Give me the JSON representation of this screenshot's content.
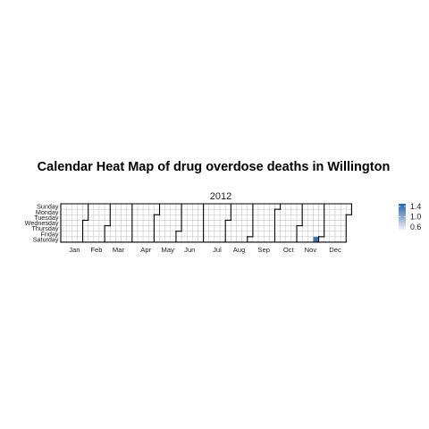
{
  "chart_data": {
    "type": "heatmap",
    "title": "Calendar Heat Map of drug overdose deaths in Willington",
    "facet_label": "2012",
    "year": 2012,
    "weekday_labels": [
      "Sunday",
      "Monday",
      "Tuesday",
      "Wednesday",
      "Thursday",
      "Friday",
      "Saturday"
    ],
    "month_labels": [
      "Jan",
      "Feb",
      "Mar",
      "Apr",
      "May",
      "Jun",
      "Jul",
      "Aug",
      "Sep",
      "Oct",
      "Nov",
      "Dec"
    ],
    "legend": {
      "ticks": [
        "1.4",
        "1.0",
        "0.6"
      ],
      "range": [
        0.5,
        1.5
      ],
      "color_low": "#f3eef8",
      "color_high": "#2166ac"
    },
    "values": [
      {
        "date": "2012-11-24",
        "value": 1.4
      }
    ],
    "empty_fill": "#ffffff",
    "grid_color": "#bfbfbf",
    "month_border_color": "#000000"
  }
}
